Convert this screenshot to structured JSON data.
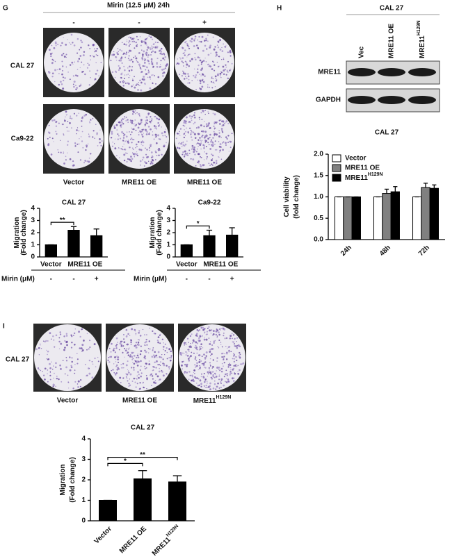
{
  "panel_labels": [
    "G",
    "H",
    "I"
  ],
  "panel_g": {
    "treatment_title": "Mirin (12.5 μM) 24h",
    "treatment_marks": [
      "-",
      "-",
      "+"
    ],
    "row_labels": [
      "CAL 27",
      "Ca9-22"
    ],
    "column_labels": [
      "Vector",
      "MRE11 OE",
      "MRE11 OE"
    ]
  },
  "panel_h": {
    "blot_title": "CAL 27",
    "lanes": [
      "Vec",
      "MRE11 OE",
      {
        "text": "MRE11",
        "sup": "H129N"
      }
    ],
    "bands": [
      "MRE11",
      "GAPDH"
    ]
  },
  "panel_i": {
    "row_label": "CAL 27",
    "column_labels": [
      "Vector",
      "MRE11 OE",
      {
        "text": "MRE11",
        "sup": "H129N"
      }
    ]
  },
  "chart_data": [
    {
      "type": "bar",
      "title": "CAL 27",
      "y_label": [
        "Migration",
        "(Fold change)"
      ],
      "categories": [
        null,
        null,
        null
      ],
      "values": [
        1,
        2.2,
        1.75
      ],
      "errors": [
        0,
        0.3,
        0.55
      ],
      "color": "#000000",
      "ylim": [
        0,
        4
      ],
      "yticks": [
        0,
        1,
        2,
        3,
        4
      ],
      "comparisons": [
        {
          "label": "**",
          "from": 0,
          "to": 1
        }
      ],
      "x_groups": [
        "Vector",
        "MRE11 OE"
      ],
      "treatment_label": "Mirin (μM)",
      "treatment_marks": [
        "-",
        "-",
        "+"
      ]
    },
    {
      "type": "bar",
      "title": "Ca9-22",
      "y_label": [
        "Migration",
        "(Fold change)"
      ],
      "categories": [
        null,
        null,
        null
      ],
      "values": [
        1,
        1.75,
        1.8
      ],
      "errors": [
        0,
        0.45,
        0.6
      ],
      "color": "#000000",
      "ylim": [
        0,
        4
      ],
      "yticks": [
        0,
        1,
        2,
        3,
        4
      ],
      "comparisons": [
        {
          "label": "*",
          "from": 0,
          "to": 1
        }
      ],
      "x_groups": [
        "Vector",
        "MRE11 OE"
      ],
      "treatment_label": "Mirin (μM)",
      "treatment_marks": [
        "-",
        "-",
        "+"
      ]
    },
    {
      "type": "bar",
      "title": "CAL 27",
      "y_label": [
        "Cell viability",
        "(fold change)"
      ],
      "categories": [
        "24h",
        "48h",
        "72h"
      ],
      "series": [
        {
          "name": "Vector",
          "color": "#ffffff",
          "values": [
            1,
            1,
            1
          ],
          "errors": [
            0,
            0,
            0
          ]
        },
        {
          "name": "MRE11 OE",
          "color": "#808080",
          "values": [
            1,
            1.08,
            1.22
          ],
          "errors": [
            0,
            0.1,
            0.1
          ]
        },
        {
          "name": {
            "text": "MRE11",
            "sup": "H129N"
          },
          "color": "#000000",
          "values": [
            1,
            1.12,
            1.2
          ],
          "errors": [
            0,
            0.12,
            0.08
          ]
        }
      ],
      "ylim": [
        0,
        2
      ],
      "yticks": [
        {
          "value": 0,
          "label": "0.0"
        },
        0.5,
        {
          "value": 1,
          "label": "1.0"
        },
        1.5,
        {
          "value": 2,
          "label": "2.0"
        }
      ],
      "legend": "top-left"
    },
    {
      "type": "bar",
      "title": "CAL 27",
      "y_label": [
        "Migration",
        "(Fold change)"
      ],
      "categories": [
        "Vector",
        "MRE11 OE",
        {
          "text": "MRE11",
          "sup": "H129N"
        }
      ],
      "values": [
        1,
        2.05,
        1.9
      ],
      "errors": [
        0,
        0.4,
        0.3
      ],
      "color": "#000000",
      "ylim": [
        0,
        4
      ],
      "yticks": [
        0,
        1,
        2,
        3,
        4
      ],
      "comparisons": [
        {
          "label": "*",
          "from": 0,
          "to": 1
        },
        {
          "label": "**",
          "from": 0,
          "to": 2
        }
      ]
    }
  ]
}
